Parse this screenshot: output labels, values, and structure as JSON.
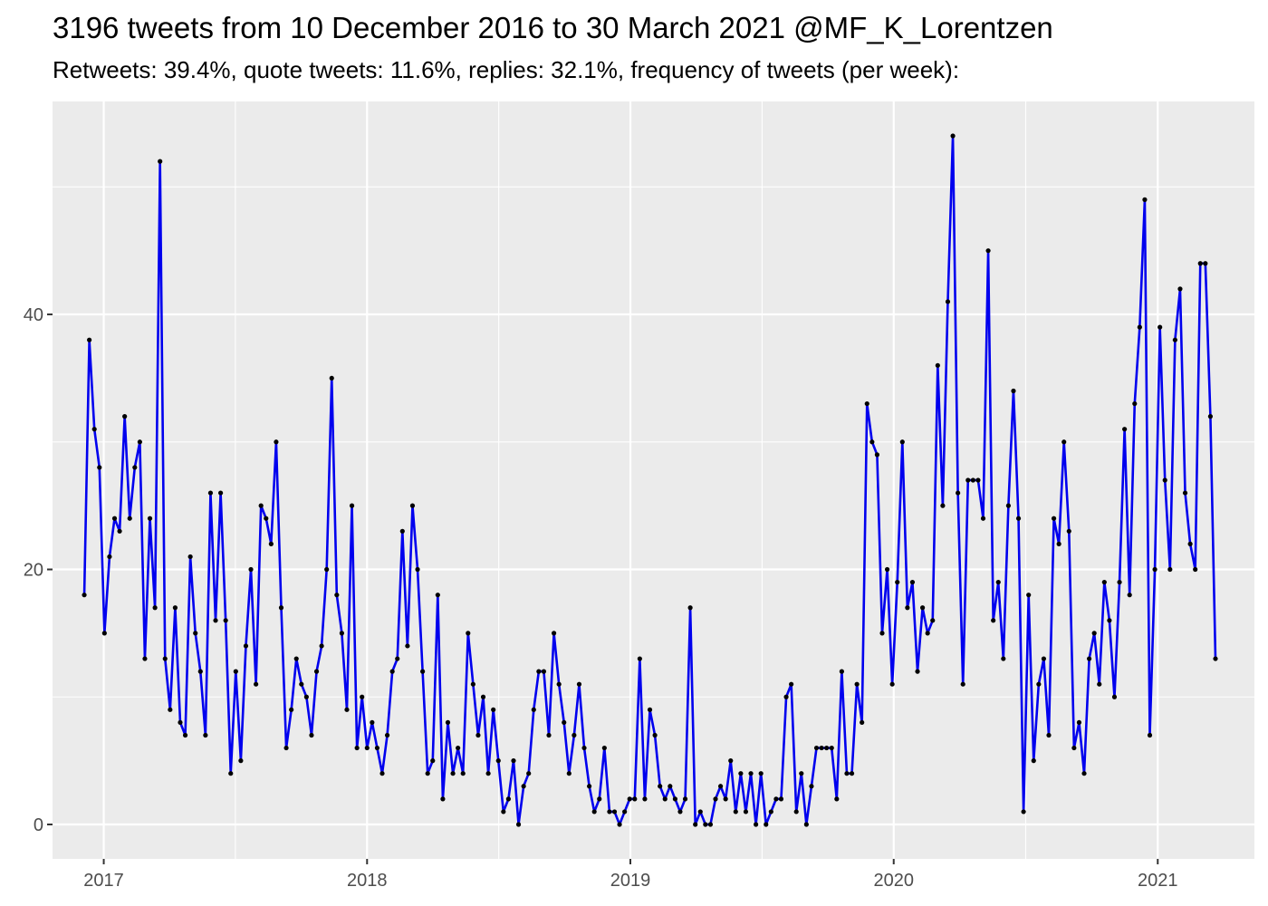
{
  "chart_data": {
    "type": "line",
    "title": "3196 tweets from 10 December 2016 to 30 March 2021 @MF_K_Lorentzen",
    "subtitle": "Retweets: 39.4%, quote tweets: 11.6%, replies: 32.1%, frequency of tweets (per week):",
    "xlabel": "",
    "ylabel": "",
    "x_start": "2016-12-05",
    "x_step_days": 7,
    "xlim": [
      "2016-10-22",
      "2021-05-15"
    ],
    "ylim": [
      -2.7,
      56.7
    ],
    "x_ticks": [
      {
        "date": "2017-01-01",
        "label": "2017"
      },
      {
        "date": "2018-01-01",
        "label": "2018"
      },
      {
        "date": "2019-01-01",
        "label": "2019"
      },
      {
        "date": "2020-01-01",
        "label": "2020"
      },
      {
        "date": "2021-01-01",
        "label": "2021"
      }
    ],
    "y_ticks": [
      {
        "value": 0,
        "label": "0"
      },
      {
        "value": 20,
        "label": "20"
      },
      {
        "value": 40,
        "label": "40"
      }
    ],
    "grid": true,
    "legend": "none",
    "series": [
      {
        "line_color": "#0000ee",
        "point_color": "#000000",
        "values": [
          18,
          38,
          31,
          28,
          15,
          21,
          24,
          23,
          32,
          24,
          28,
          30,
          13,
          24,
          17,
          52,
          13,
          9,
          17,
          8,
          7,
          21,
          15,
          12,
          7,
          26,
          16,
          26,
          16,
          4,
          12,
          5,
          14,
          20,
          11,
          25,
          24,
          22,
          30,
          17,
          6,
          9,
          13,
          11,
          10,
          7,
          12,
          14,
          20,
          35,
          18,
          15,
          9,
          25,
          6,
          10,
          6,
          8,
          6,
          4,
          7,
          12,
          13,
          23,
          14,
          25,
          20,
          12,
          4,
          5,
          18,
          2,
          8,
          4,
          6,
          4,
          15,
          11,
          7,
          10,
          4,
          9,
          5,
          1,
          2,
          5,
          0,
          3,
          4,
          9,
          12,
          12,
          7,
          15,
          11,
          8,
          4,
          7,
          11,
          6,
          3,
          1,
          2,
          6,
          1,
          1,
          0,
          1,
          2,
          2,
          13,
          2,
          9,
          7,
          3,
          2,
          3,
          2,
          1,
          2,
          17,
          0,
          1,
          0,
          0,
          2,
          3,
          2,
          5,
          1,
          4,
          1,
          4,
          0,
          4,
          0,
          1,
          2,
          2,
          10,
          11,
          1,
          4,
          0,
          3,
          6,
          6,
          6,
          6,
          2,
          12,
          4,
          4,
          11,
          8,
          33,
          30,
          29,
          15,
          20,
          11,
          19,
          30,
          17,
          19,
          12,
          17,
          15,
          16,
          36,
          25,
          41,
          54,
          26,
          11,
          27,
          27,
          27,
          24,
          45,
          16,
          19,
          13,
          25,
          34,
          24,
          1,
          18,
          5,
          11,
          13,
          7,
          24,
          22,
          30,
          23,
          6,
          8,
          4,
          13,
          15,
          11,
          19,
          16,
          10,
          19,
          31,
          18,
          33,
          39,
          49,
          7,
          20,
          39,
          27,
          20,
          38,
          42,
          26,
          22,
          20,
          44,
          44,
          32,
          13
        ]
      }
    ]
  }
}
